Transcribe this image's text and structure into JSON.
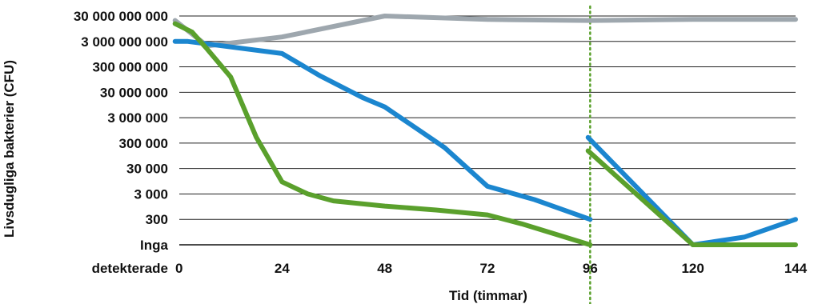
{
  "chart_data": {
    "type": "line",
    "title": "",
    "xlabel": "Tid (timmar)",
    "ylabel": "Livsdugliga bakterier (CFU)",
    "x_ticks": [
      0,
      24,
      48,
      72,
      96,
      120,
      144
    ],
    "xlim": [
      0,
      144
    ],
    "y_scale": "log",
    "y_ticks": [
      {
        "value": 0,
        "label_lines": [
          "Inga",
          "detekterade"
        ]
      },
      {
        "value": 300,
        "label_lines": [
          "300"
        ]
      },
      {
        "value": 3000,
        "label_lines": [
          "3 000"
        ]
      },
      {
        "value": 30000,
        "label_lines": [
          "30 000"
        ]
      },
      {
        "value": 300000,
        "label_lines": [
          "300 000"
        ]
      },
      {
        "value": 3000000,
        "label_lines": [
          "3 000 000"
        ]
      },
      {
        "value": 30000000,
        "label_lines": [
          "30 000 000"
        ]
      },
      {
        "value": 300000000,
        "label_lines": [
          "300 000 000"
        ]
      },
      {
        "value": 3000000000,
        "label_lines": [
          "3 000 000 000"
        ]
      },
      {
        "value": 30000000000,
        "label_lines": [
          "30 000 000 000"
        ]
      }
    ],
    "grid": "horizontal",
    "legend": false,
    "vertical_marker": {
      "x": 96,
      "style": "dotted",
      "color": "#5aa02c"
    },
    "series": [
      {
        "color": "#9ea7ae",
        "segments": [
          [
            [
              -1,
              20000000000
            ],
            [
              6.5,
              2000000000
            ],
            [
              24,
              4500000000
            ],
            [
              48,
              30000000000
            ],
            [
              72,
              22000000000
            ],
            [
              96,
              20000000000
            ],
            [
              120,
              22000000000
            ],
            [
              144,
              22000000000
            ]
          ]
        ]
      },
      {
        "color": "#1b86cf",
        "segments": [
          [
            [
              -1,
              3000000000
            ],
            [
              2,
              3000000000
            ],
            [
              24,
              1000000000
            ],
            [
              33,
              130000000
            ],
            [
              43,
              18000000
            ],
            [
              48,
              8000000
            ],
            [
              62,
              200000
            ],
            [
              72,
              6000
            ],
            [
              83,
              1800
            ],
            [
              96,
              300
            ]
          ],
          [
            [
              95.5,
              500000
            ],
            [
              120,
              0
            ],
            [
              132,
              60
            ],
            [
              144,
              300
            ]
          ]
        ]
      },
      {
        "color": "#5aa02c",
        "segments": [
          [
            [
              -1,
              15000000000
            ],
            [
              3,
              7000000000
            ],
            [
              6.5,
              1500000000
            ],
            [
              12,
              120000000
            ],
            [
              18,
              500000
            ],
            [
              24,
              9000
            ],
            [
              30,
              3000
            ],
            [
              36,
              1600
            ],
            [
              48,
              1000
            ],
            [
              60,
              700
            ],
            [
              72,
              450
            ],
            [
              80,
              200
            ],
            [
              96,
              0
            ]
          ],
          [
            [
              95.5,
              150000
            ],
            [
              120,
              0
            ],
            [
              132,
              0
            ],
            [
              144,
              0
            ]
          ]
        ]
      }
    ]
  }
}
